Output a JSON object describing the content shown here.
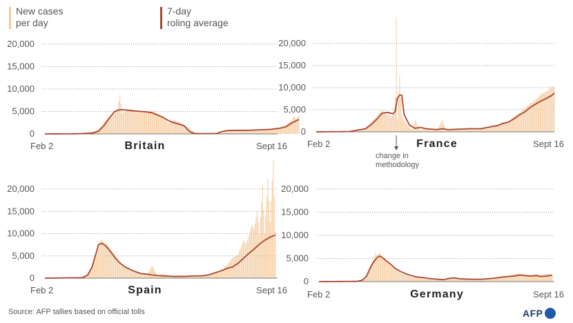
{
  "legend": {
    "bars": {
      "line1": "New cases",
      "line2": "per day",
      "color": "#f5c99a"
    },
    "line": {
      "line1": "7-day",
      "line2": "roling average",
      "color": "#a9452f"
    }
  },
  "source": "Source: AFP tallies based on official tolls",
  "logo": "AFP",
  "chart_data": [
    {
      "type": "bar",
      "title": "Britain",
      "x_start_label": "Feb 2",
      "x_end_label": "Sept 16",
      "yticks": [
        0,
        5000,
        10000,
        15000,
        20000
      ],
      "ytick_labels": [
        "0",
        "5,000",
        "10,000",
        "15,000",
        "20,000"
      ],
      "ylim": [
        0,
        20000
      ],
      "daily": [
        [
          0,
          0
        ],
        [
          20,
          10
        ],
        [
          40,
          200
        ],
        [
          50,
          1000
        ],
        [
          55,
          2600
        ],
        [
          60,
          3800
        ],
        [
          65,
          4800
        ],
        [
          68,
          5800
        ],
        [
          70,
          8700
        ],
        [
          72,
          4500
        ],
        [
          75,
          5100
        ],
        [
          80,
          5500
        ],
        [
          85,
          5000
        ],
        [
          90,
          5200
        ],
        [
          95,
          4800
        ],
        [
          100,
          5200
        ],
        [
          105,
          4500
        ],
        [
          110,
          3900
        ],
        [
          113,
          3400
        ],
        [
          115,
          2300
        ],
        [
          120,
          3100
        ],
        [
          125,
          2600
        ],
        [
          130,
          2000
        ],
        [
          135,
          1200
        ],
        [
          140,
          300
        ],
        [
          150,
          100
        ],
        [
          165,
          300
        ],
        [
          170,
          700
        ],
        [
          180,
          800
        ],
        [
          190,
          700
        ],
        [
          200,
          800
        ],
        [
          210,
          1100
        ],
        [
          220,
          1400
        ],
        [
          225,
          2000
        ],
        [
          230,
          3000
        ],
        [
          232,
          3800
        ],
        [
          235,
          3400
        ],
        [
          237,
          4200
        ]
      ],
      "average": [
        [
          0,
          0
        ],
        [
          30,
          30
        ],
        [
          45,
          200
        ],
        [
          50,
          600
        ],
        [
          55,
          1800
        ],
        [
          60,
          3500
        ],
        [
          65,
          5000
        ],
        [
          70,
          5400
        ],
        [
          75,
          5350
        ],
        [
          80,
          5200
        ],
        [
          85,
          5100
        ],
        [
          90,
          5000
        ],
        [
          95,
          4900
        ],
        [
          100,
          4700
        ],
        [
          105,
          4200
        ],
        [
          110,
          3700
        ],
        [
          115,
          3000
        ],
        [
          120,
          2500
        ],
        [
          125,
          2200
        ],
        [
          130,
          1800
        ],
        [
          135,
          500
        ],
        [
          140,
          50
        ],
        [
          160,
          80
        ],
        [
          165,
          500
        ],
        [
          170,
          750
        ],
        [
          180,
          800
        ],
        [
          190,
          800
        ],
        [
          200,
          900
        ],
        [
          210,
          1000
        ],
        [
          220,
          1300
        ],
        [
          225,
          1600
        ],
        [
          230,
          2400
        ],
        [
          235,
          3000
        ],
        [
          237,
          3200
        ]
      ]
    },
    {
      "type": "bar",
      "title": "France",
      "x_start_label": "Feb 2",
      "x_end_label": "Sept 16",
      "annotation": "change in methodology",
      "yticks": [
        0,
        5000,
        10000,
        15000,
        20000
      ],
      "ytick_labels": [
        "0",
        "5,000",
        "10,000",
        "15,000",
        "20,000"
      ],
      "ylim": [
        0,
        20000
      ],
      "daily": [
        [
          0,
          0
        ],
        [
          30,
          50
        ],
        [
          40,
          300
        ],
        [
          45,
          1000
        ],
        [
          50,
          2200
        ],
        [
          55,
          3400
        ],
        [
          58,
          4300
        ],
        [
          60,
          5000
        ],
        [
          63,
          4200
        ],
        [
          65,
          3700
        ],
        [
          66,
          4500
        ],
        [
          67,
          3600
        ],
        [
          68,
          3100
        ],
        [
          70,
          4200
        ],
        [
          71,
          5500
        ],
        [
          72,
          7800
        ],
        [
          73,
          26000
        ],
        [
          74,
          2800
        ],
        [
          75,
          9000
        ],
        [
          76,
          12800
        ],
        [
          77,
          7600
        ],
        [
          78,
          3700
        ],
        [
          80,
          2600
        ],
        [
          85,
          900
        ],
        [
          88,
          600
        ],
        [
          90,
          2800
        ],
        [
          95,
          400
        ],
        [
          100,
          900
        ],
        [
          105,
          400
        ],
        [
          110,
          400
        ],
        [
          115,
          2700
        ],
        [
          118,
          600
        ],
        [
          125,
          500
        ],
        [
          130,
          700
        ],
        [
          140,
          600
        ],
        [
          150,
          800
        ],
        [
          160,
          1100
        ],
        [
          165,
          1600
        ],
        [
          170,
          1900
        ],
        [
          175,
          2300
        ],
        [
          180,
          3400
        ],
        [
          185,
          4200
        ],
        [
          190,
          5400
        ],
        [
          195,
          6400
        ],
        [
          200,
          7300
        ],
        [
          205,
          8500
        ],
        [
          210,
          9200
        ],
        [
          215,
          10300
        ],
        [
          217,
          10100
        ]
      ],
      "average": [
        [
          0,
          0
        ],
        [
          30,
          60
        ],
        [
          45,
          700
        ],
        [
          50,
          1600
        ],
        [
          55,
          2800
        ],
        [
          60,
          4200
        ],
        [
          65,
          4400
        ],
        [
          70,
          4100
        ],
        [
          72,
          4600
        ],
        [
          74,
          7600
        ],
        [
          76,
          8300
        ],
        [
          78,
          8300
        ],
        [
          80,
          4000
        ],
        [
          85,
          1500
        ],
        [
          90,
          800
        ],
        [
          95,
          1000
        ],
        [
          100,
          700
        ],
        [
          110,
          500
        ],
        [
          115,
          700
        ],
        [
          120,
          500
        ],
        [
          130,
          600
        ],
        [
          140,
          700
        ],
        [
          150,
          700
        ],
        [
          160,
          1200
        ],
        [
          165,
          1400
        ],
        [
          170,
          1900
        ],
        [
          175,
          2200
        ],
        [
          180,
          2900
        ],
        [
          185,
          3800
        ],
        [
          190,
          4500
        ],
        [
          195,
          5500
        ],
        [
          200,
          6300
        ],
        [
          205,
          7000
        ],
        [
          210,
          7600
        ],
        [
          215,
          8300
        ],
        [
          217,
          8800
        ]
      ]
    },
    {
      "type": "bar",
      "title": "Spain",
      "x_start_label": "Feb 2",
      "x_end_label": "Sept 16",
      "yticks": [
        0,
        5000,
        10000,
        15000,
        20000
      ],
      "ytick_labels": [
        "0",
        "5,000",
        "10,000",
        "15,000",
        "20,000"
      ],
      "ylim": [
        0,
        20000
      ],
      "daily": [
        [
          0,
          0
        ],
        [
          30,
          20
        ],
        [
          38,
          600
        ],
        [
          42,
          1800
        ],
        [
          45,
          3500
        ],
        [
          48,
          5000
        ],
        [
          50,
          7000
        ],
        [
          52,
          8400
        ],
        [
          54,
          8600
        ],
        [
          56,
          7600
        ],
        [
          58,
          7800
        ],
        [
          60,
          6900
        ],
        [
          62,
          6200
        ],
        [
          64,
          5800
        ],
        [
          66,
          5000
        ],
        [
          68,
          4300
        ],
        [
          70,
          3500
        ],
        [
          72,
          3100
        ],
        [
          75,
          2500
        ],
        [
          80,
          1700
        ],
        [
          85,
          1400
        ],
        [
          90,
          800
        ],
        [
          95,
          700
        ],
        [
          100,
          2800
        ],
        [
          105,
          500
        ],
        [
          110,
          1000
        ],
        [
          120,
          400
        ],
        [
          130,
          300
        ],
        [
          140,
          400
        ],
        [
          150,
          600
        ],
        [
          160,
          1500
        ],
        [
          165,
          1800
        ],
        [
          170,
          3000
        ],
        [
          175,
          4600
        ],
        [
          180,
          5200
        ],
        [
          183,
          7000
        ],
        [
          185,
          8500
        ],
        [
          188,
          7800
        ],
        [
          190,
          9400
        ],
        [
          193,
          12000
        ],
        [
          195,
          11000
        ],
        [
          198,
          15000
        ],
        [
          200,
          9800
        ],
        [
          203,
          20800
        ],
        [
          205,
          10000
        ],
        [
          208,
          22300
        ],
        [
          210,
          12500
        ],
        [
          213,
          26600
        ],
        [
          215,
          10500
        ]
      ],
      "average": [
        [
          0,
          0
        ],
        [
          35,
          100
        ],
        [
          40,
          700
        ],
        [
          44,
          2500
        ],
        [
          47,
          5000
        ],
        [
          50,
          7500
        ],
        [
          52,
          7800
        ],
        [
          54,
          7700
        ],
        [
          56,
          7400
        ],
        [
          58,
          6900
        ],
        [
          60,
          6300
        ],
        [
          62,
          5700
        ],
        [
          65,
          4700
        ],
        [
          70,
          3400
        ],
        [
          75,
          2500
        ],
        [
          80,
          1900
        ],
        [
          85,
          1400
        ],
        [
          90,
          1000
        ],
        [
          95,
          900
        ],
        [
          100,
          700
        ],
        [
          110,
          500
        ],
        [
          120,
          400
        ],
        [
          130,
          400
        ],
        [
          140,
          500
        ],
        [
          145,
          500
        ],
        [
          150,
          600
        ],
        [
          155,
          900
        ],
        [
          160,
          1300
        ],
        [
          165,
          1700
        ],
        [
          170,
          2200
        ],
        [
          175,
          2500
        ],
        [
          180,
          3300
        ],
        [
          185,
          4400
        ],
        [
          190,
          5500
        ],
        [
          195,
          6500
        ],
        [
          200,
          7600
        ],
        [
          205,
          8500
        ],
        [
          210,
          9200
        ],
        [
          215,
          9700
        ],
        [
          217,
          9800
        ]
      ]
    },
    {
      "type": "bar",
      "title": "Germany",
      "x_start_label": "Feb 2",
      "x_end_label": "Sept 16",
      "yticks": [
        0,
        5000,
        10000,
        15000,
        20000
      ],
      "ytick_labels": [
        "0",
        "5,000",
        "10,000",
        "15,000",
        "20,000"
      ],
      "ylim": [
        0,
        20000
      ],
      "daily": [
        [
          0,
          0
        ],
        [
          30,
          20
        ],
        [
          38,
          200
        ],
        [
          42,
          900
        ],
        [
          45,
          2200
        ],
        [
          48,
          3900
        ],
        [
          50,
          4800
        ],
        [
          52,
          6200
        ],
        [
          54,
          5400
        ],
        [
          56,
          6300
        ],
        [
          58,
          5700
        ],
        [
          60,
          4900
        ],
        [
          62,
          4300
        ],
        [
          64,
          4200
        ],
        [
          66,
          3500
        ],
        [
          68,
          3000
        ],
        [
          70,
          2700
        ],
        [
          72,
          2300
        ],
        [
          75,
          1900
        ],
        [
          78,
          1600
        ],
        [
          80,
          1500
        ],
        [
          85,
          1000
        ],
        [
          90,
          900
        ],
        [
          95,
          700
        ],
        [
          100,
          500
        ],
        [
          110,
          400
        ],
        [
          115,
          300
        ],
        [
          120,
          700
        ],
        [
          125,
          800
        ],
        [
          130,
          500
        ],
        [
          140,
          400
        ],
        [
          150,
          500
        ],
        [
          160,
          800
        ],
        [
          165,
          900
        ],
        [
          170,
          1200
        ],
        [
          175,
          1300
        ],
        [
          180,
          1600
        ],
        [
          185,
          1800
        ],
        [
          190,
          1500
        ],
        [
          195,
          1200
        ],
        [
          200,
          1600
        ],
        [
          205,
          1400
        ],
        [
          210,
          1700
        ],
        [
          215,
          1500
        ]
      ],
      "average": [
        [
          0,
          0
        ],
        [
          35,
          50
        ],
        [
          40,
          300
        ],
        [
          44,
          1200
        ],
        [
          47,
          2800
        ],
        [
          50,
          4100
        ],
        [
          53,
          5000
        ],
        [
          55,
          5500
        ],
        [
          57,
          5400
        ],
        [
          60,
          4900
        ],
        [
          63,
          4300
        ],
        [
          66,
          3800
        ],
        [
          70,
          2900
        ],
        [
          75,
          2200
        ],
        [
          80,
          1700
        ],
        [
          85,
          1300
        ],
        [
          90,
          1000
        ],
        [
          95,
          900
        ],
        [
          100,
          700
        ],
        [
          110,
          500
        ],
        [
          115,
          400
        ],
        [
          120,
          700
        ],
        [
          125,
          800
        ],
        [
          130,
          600
        ],
        [
          140,
          500
        ],
        [
          150,
          500
        ],
        [
          160,
          700
        ],
        [
          170,
          1000
        ],
        [
          180,
          1200
        ],
        [
          185,
          1400
        ],
        [
          190,
          1300
        ],
        [
          195,
          1200
        ],
        [
          200,
          1300
        ],
        [
          205,
          1100
        ],
        [
          210,
          1200
        ],
        [
          215,
          1400
        ]
      ]
    }
  ]
}
